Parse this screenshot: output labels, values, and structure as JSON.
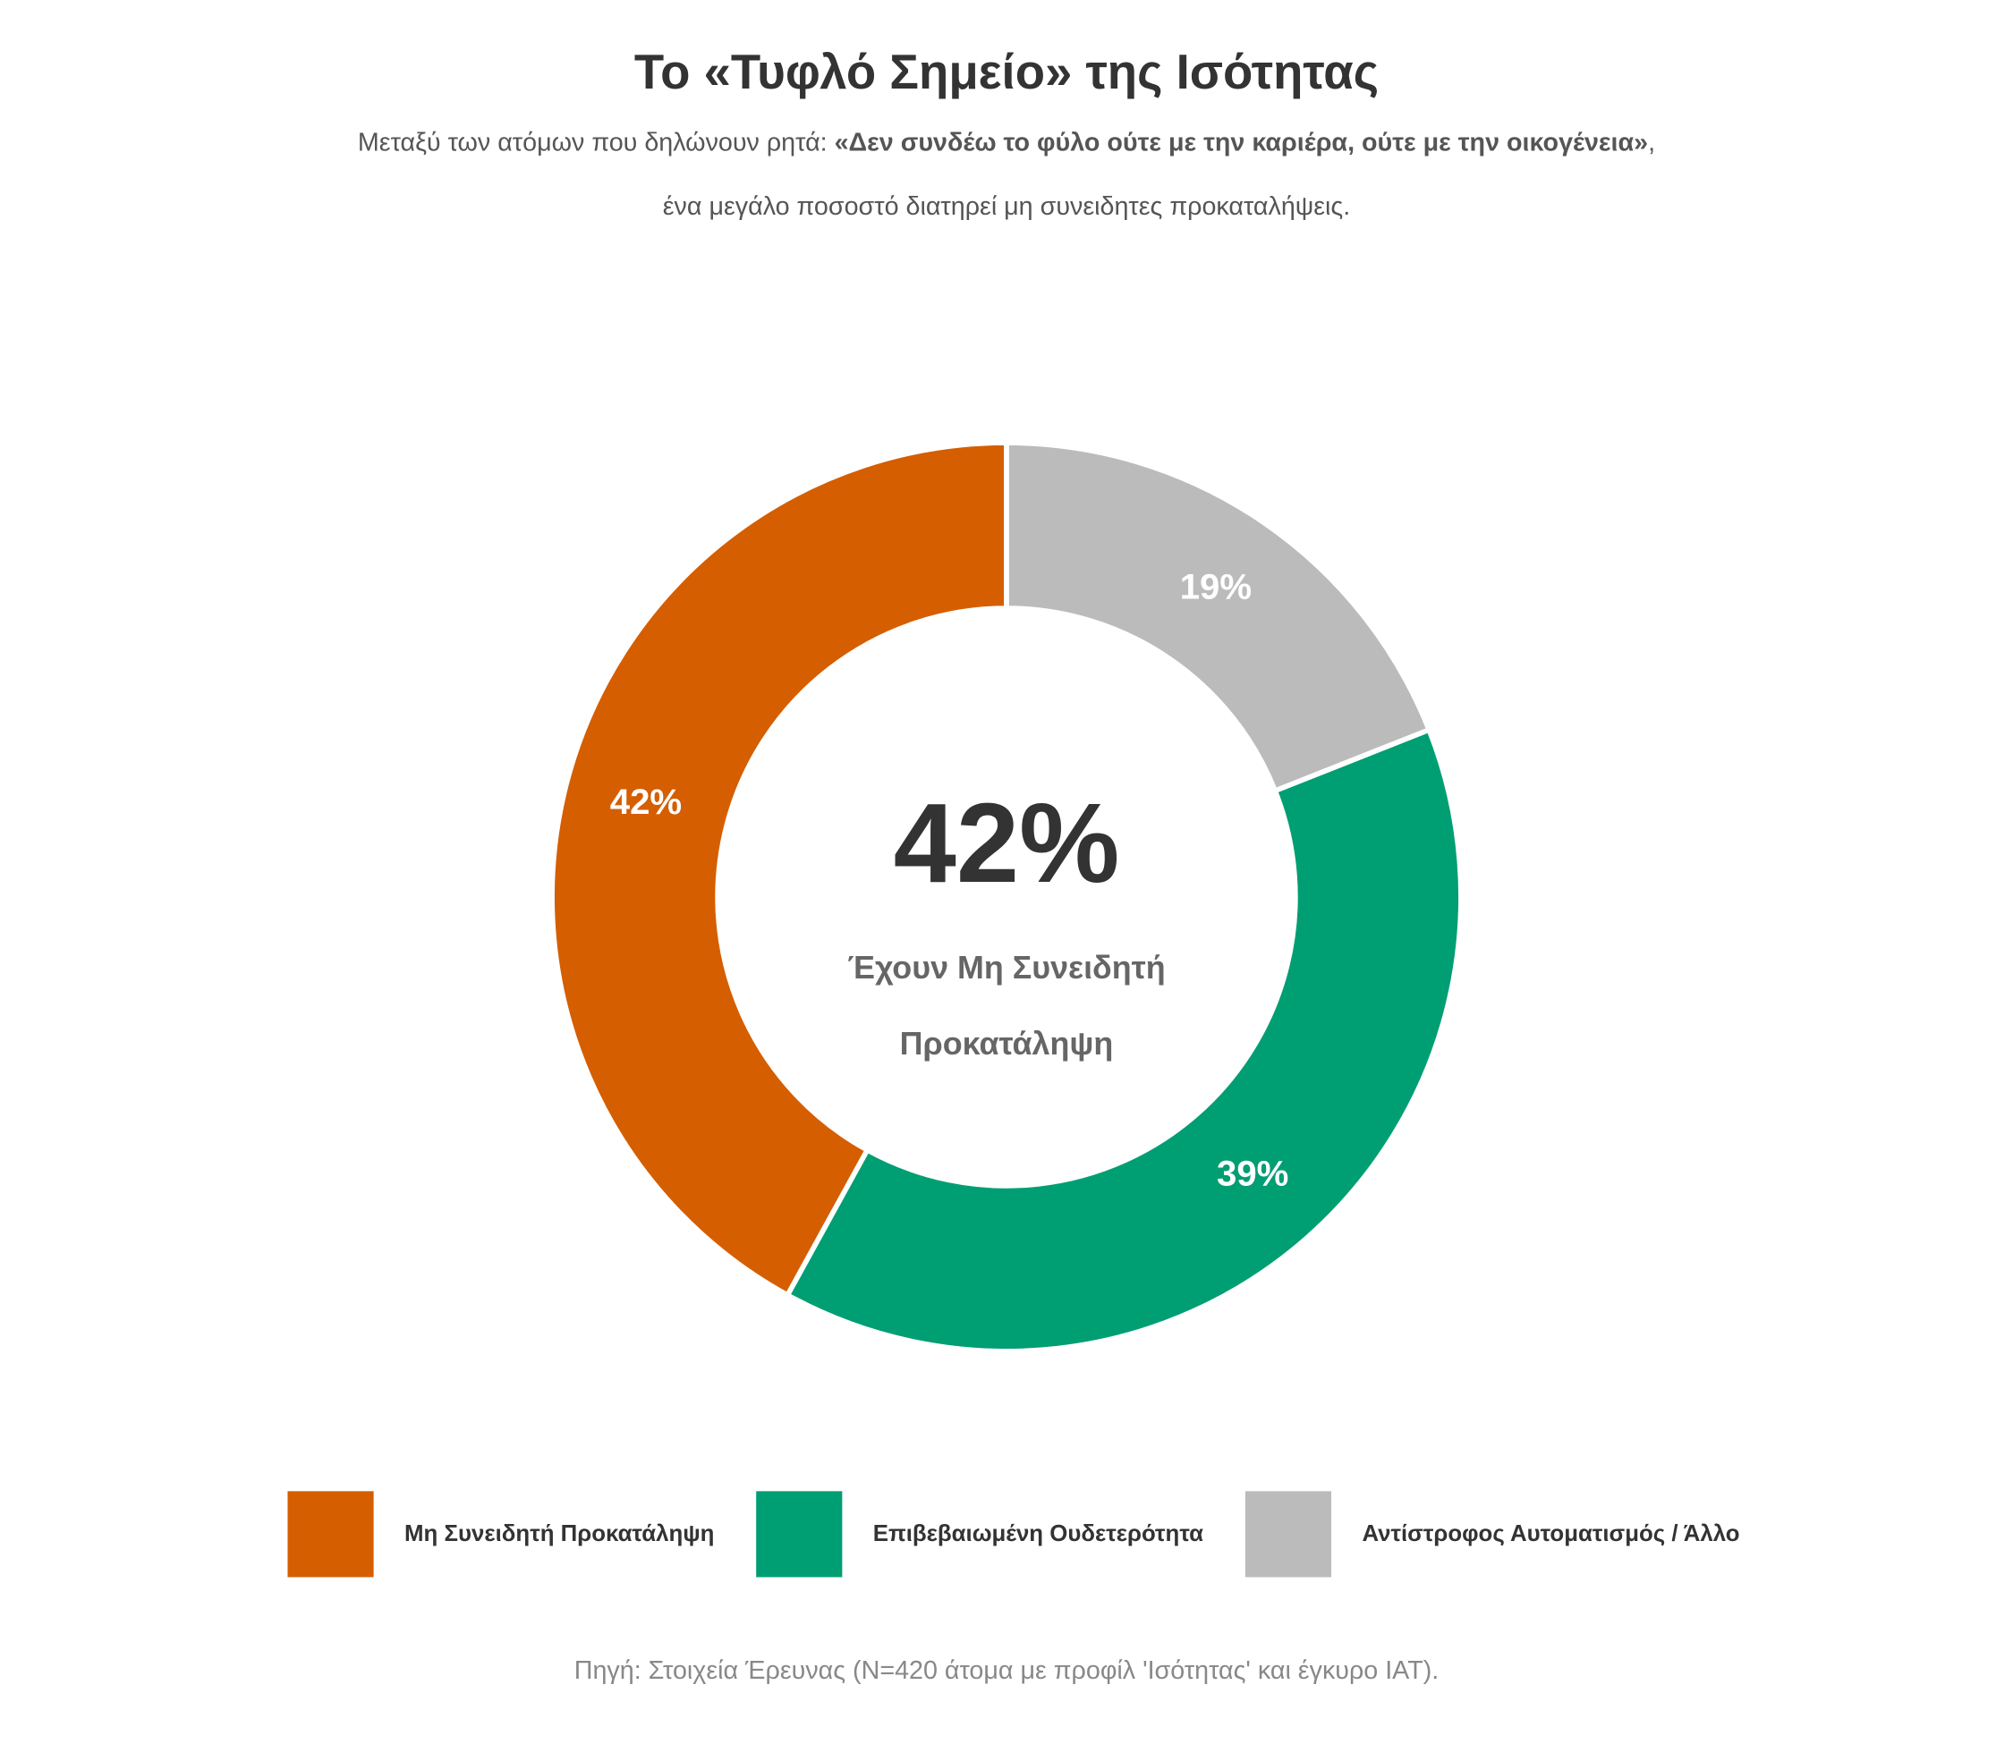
{
  "chart_data": {
    "type": "donut",
    "title": "Το «Τυφλό Σημείο» της Ισότητας",
    "subtitle": {
      "prefix": "Μεταξύ των ατόμων που δηλώνουν ρητά: ",
      "emphasis": "«Δεν συνδέω το φύλο ούτε με την καριέρα, ούτε με την οικογένεια»",
      "suffix": ",",
      "line2": "ένα μεγάλο ποσοστό διατηρεί μη συνειδητες προκαταλήψεις."
    },
    "categories": [
      "Μη Συνειδητή Προκατάληψη",
      "Επιβεβαιωμένη Ουδετερότητα",
      "Αντίστροφος Αυτοματισμός / Άλλο"
    ],
    "values": [
      42,
      39,
      19
    ],
    "value_labels": [
      "42%",
      "39%",
      "19%"
    ],
    "colors": [
      "#d55e00",
      "#009e73",
      "#bbbbbb"
    ],
    "center_label": "42%",
    "center_caption": [
      "Έχουν Μη Συνειδητή",
      "Προκατάληψη"
    ],
    "legend": "bottom",
    "source": "Πηγή: Στοιχεία Έρευνας (N=420 άτομα με προφίλ 'Ισότητας' και έγκυρο IAT)."
  }
}
